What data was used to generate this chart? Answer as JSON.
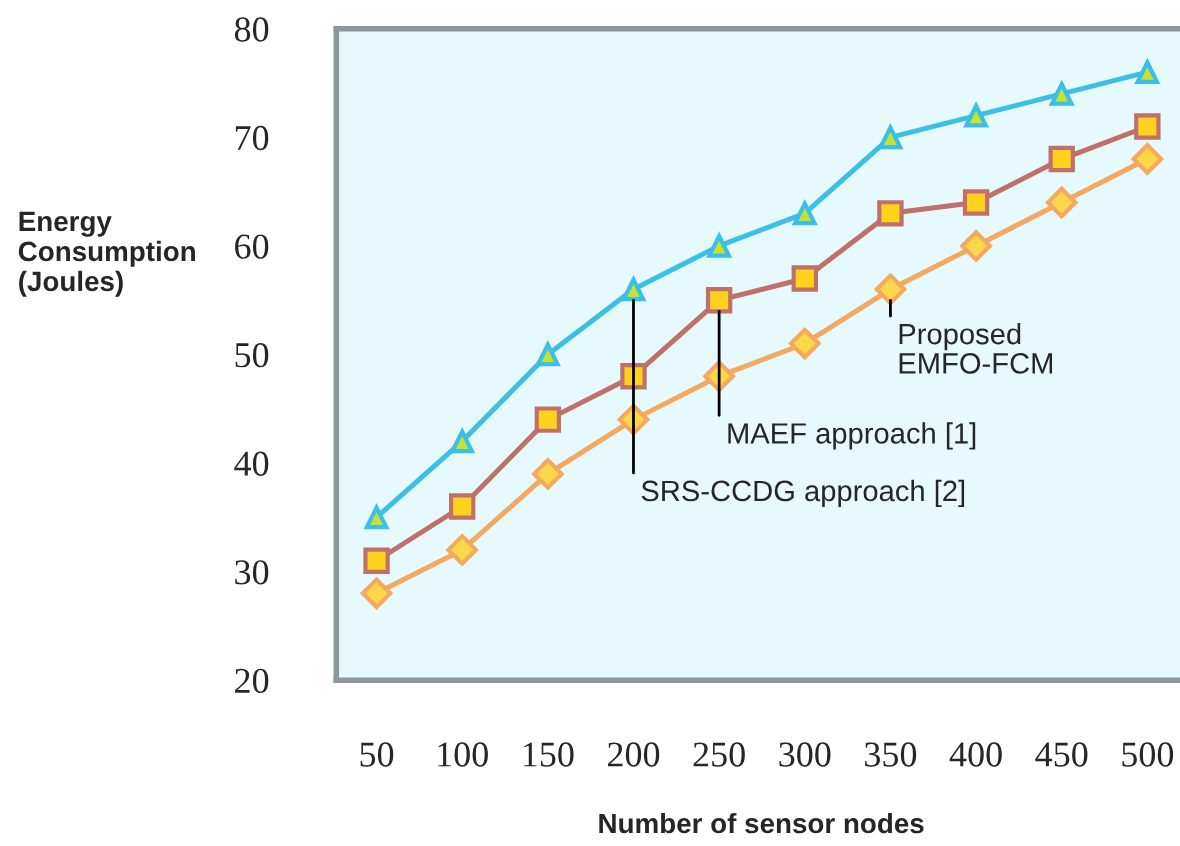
{
  "chart_data": {
    "type": "line",
    "xlabel": "Number of sensor nodes",
    "ylabel": "Energy\nConsumption\n(Joules)",
    "categories": [
      "50",
      "100",
      "150",
      "200",
      "250",
      "300",
      "350",
      "400",
      "450",
      "500"
    ],
    "ylim": [
      20,
      80
    ],
    "yticks": [
      20,
      30,
      40,
      50,
      60,
      70,
      80
    ],
    "grid": false,
    "annotations": [
      {
        "text": "SRS-CCDG approach [2]",
        "x": "200",
        "y": 56
      },
      {
        "text": "MAEF approach [1]",
        "x": "250",
        "y": 55
      },
      {
        "text": "Proposed\nEMFO-FCM",
        "x": "350",
        "y": 56
      }
    ],
    "series": [
      {
        "color": "#3cbfe6",
        "marker": "triangle",
        "values": [
          35,
          42,
          50,
          56,
          60,
          63,
          70,
          72,
          74,
          76
        ]
      },
      {
        "color": "#c0706a",
        "marker": "square",
        "values": [
          31,
          36,
          44,
          48,
          55,
          57,
          63,
          64,
          68,
          71
        ]
      },
      {
        "color": "#f4a860",
        "marker": "diamond",
        "values": [
          28,
          32,
          39,
          44,
          48,
          51,
          56,
          60,
          64,
          68
        ]
      }
    ]
  }
}
